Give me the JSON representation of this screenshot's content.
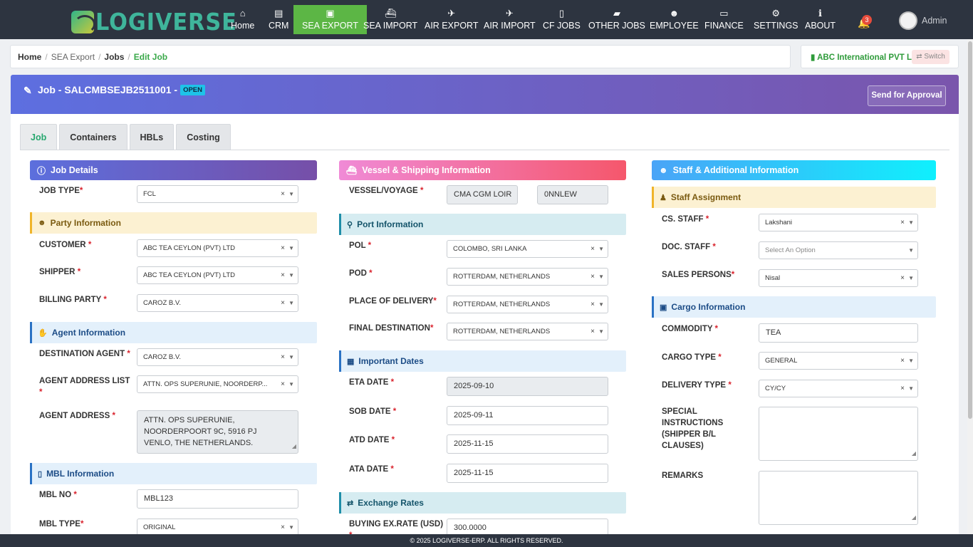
{
  "brand": {
    "name": "LOGIVERSE"
  },
  "nav": {
    "items": [
      {
        "label": "Home",
        "icon": "home-icon"
      },
      {
        "label": "CRM",
        "icon": "id-card-icon"
      },
      {
        "label": "SEA EXPORT",
        "icon": "train-icon"
      },
      {
        "label": "SEA IMPORT",
        "icon": "ship-icon"
      },
      {
        "label": "AIR EXPORT",
        "icon": "plane-departure-icon"
      },
      {
        "label": "AIR IMPORT",
        "icon": "plane-arrival-icon"
      },
      {
        "label": "CF JOBS",
        "icon": "file-icon"
      },
      {
        "label": "OTHER JOBS",
        "icon": "briefcase-icon"
      },
      {
        "label": "EMPLOYEE",
        "icon": "users-icon"
      },
      {
        "label": "FINANCE",
        "icon": "money-bill-icon"
      },
      {
        "label": "SETTINGS",
        "icon": "gear-icon"
      },
      {
        "label": "ABOUT",
        "icon": "info-icon"
      }
    ],
    "active": "SEA EXPORT",
    "active_color": "#5cb645",
    "notification_count": "3",
    "user": "Admin"
  },
  "breadcrumb": {
    "home": "Home",
    "section": "SEA Export",
    "jobs": "Jobs",
    "current": "Edit Job"
  },
  "company": {
    "name": "ABC International PVT Ltd",
    "switch_label": "Switch"
  },
  "job": {
    "title": "Job - SALCMBSEJB2511001 -",
    "status": "OPEN",
    "approve_label": "Send for Approval"
  },
  "tabs": [
    "Job",
    "Containers",
    "HBLs",
    "Costing"
  ],
  "col1": {
    "job_details": "Job Details",
    "job_type": {
      "label": "JOB TYPE",
      "value": "FCL"
    },
    "party_info": "Party Information",
    "customer": {
      "label": "CUSTOMER",
      "value": "ABC TEA CEYLON (PVT) LTD"
    },
    "shipper": {
      "label": "SHIPPER",
      "value": "ABC TEA CEYLON (PVT) LTD"
    },
    "billing": {
      "label": "BILLING PARTY",
      "value": "CAROZ B.V."
    },
    "agent_info": "Agent Information",
    "dest_agent": {
      "label": "DESTINATION AGENT",
      "value": "CAROZ B.V."
    },
    "agent_addr_list": {
      "label": "AGENT ADDRESS LIST",
      "value": "ATTN. OPS SUPERUNIE, NOORDERP..."
    },
    "agent_addr": {
      "label": "AGENT ADDRESS",
      "value": "ATTN. OPS SUPERUNIE,\nNOORDERPOORT 9C, 5916 PJ\nVENLO, THE NETHERLANDS."
    },
    "mbl_info": "MBL Information",
    "mbl_no": {
      "label": "MBL NO",
      "value": "MBL123"
    },
    "mbl_type": {
      "label": "MBL TYPE",
      "value": "ORIGINAL"
    }
  },
  "col2": {
    "vessel_head": "Vessel & Shipping Information",
    "vessel": {
      "label": "VESSEL/VOYAGE",
      "vessel": "CMA CGM LOIR",
      "voyage": "0NNLEW"
    },
    "port_info": "Port Information",
    "pol": {
      "label": "POL",
      "value": "COLOMBO, SRI LANKA"
    },
    "pod": {
      "label": "POD",
      "value": "ROTTERDAM, NETHERLANDS"
    },
    "place": {
      "label": "PLACE OF DELIVERY",
      "value": "ROTTERDAM, NETHERLANDS"
    },
    "final": {
      "label": "FINAL DESTINATION",
      "value": "ROTTERDAM, NETHERLANDS"
    },
    "dates_head": "Important Dates",
    "eta": {
      "label": "ETA DATE",
      "value": "2025-09-10"
    },
    "sob": {
      "label": "SOB DATE",
      "value": "2025-09-11"
    },
    "atd": {
      "label": "ATD DATE",
      "value": "2025-11-15"
    },
    "ata": {
      "label": "ATA DATE",
      "value": "2025-11-15"
    },
    "ex_head": "Exchange Rates",
    "buying": {
      "label": "BUYING EX.RATE (USD)",
      "value": "300.0000"
    }
  },
  "col3": {
    "staff_head": "Staff & Additional Information",
    "staff_assign": "Staff Assignment",
    "cs": {
      "label": "CS. STAFF",
      "value": "Lakshani"
    },
    "doc": {
      "label": "DOC. STAFF",
      "placeholder": "Select An Option"
    },
    "sales": {
      "label": "SALES PERSONS",
      "value": "Nisal"
    },
    "cargo_head": "Cargo Information",
    "commodity": {
      "label": "COMMODITY",
      "value": "TEA"
    },
    "cargo_type": {
      "label": "CARGO TYPE",
      "value": "GENERAL"
    },
    "delivery": {
      "label": "DELIVERY TYPE",
      "value": "CY/CY"
    },
    "special": {
      "label": "SPECIAL INSTRUCTIONS (SHIPPER B/L CLAUSES)",
      "value": ""
    },
    "remarks": {
      "label": "REMARKS",
      "value": ""
    }
  },
  "footer": "© 2025 LOGIVERSE-ERP. ALL RIGHTS RESERVED."
}
